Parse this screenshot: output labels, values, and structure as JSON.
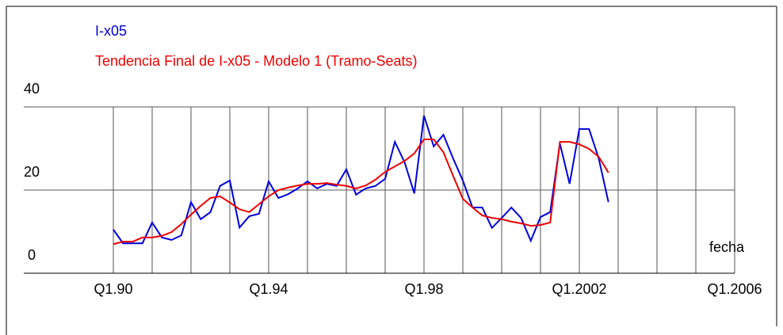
{
  "chart_data": {
    "type": "line",
    "x_label": "fecha",
    "x": [
      1990,
      1990.25,
      1990.5,
      1990.75,
      1991,
      1991.25,
      1991.5,
      1991.75,
      1992,
      1992.25,
      1992.5,
      1992.75,
      1993,
      1993.25,
      1993.5,
      1993.75,
      1994,
      1994.25,
      1994.5,
      1994.75,
      1995,
      1995.25,
      1995.5,
      1995.75,
      1996,
      1996.25,
      1996.5,
      1996.75,
      1997,
      1997.25,
      1997.5,
      1997.75,
      1998,
      1998.25,
      1998.5,
      1998.75,
      1999,
      1999.25,
      1999.5,
      1999.75,
      2000,
      2000.25,
      2000.5,
      2000.75,
      2001,
      2001.25,
      2001.5,
      2001.75,
      2002,
      2002.25,
      2002.5,
      2002.75
    ],
    "series": [
      {
        "name": "I-x05",
        "color": "#0000dd",
        "values": [
          10.5,
          7.2,
          7.2,
          7.2,
          12.2,
          8.6,
          8,
          9.1,
          17.1,
          13,
          14.7,
          21,
          22.3,
          11,
          13.7,
          14.3,
          22.1,
          18.1,
          19,
          20.4,
          22.1,
          20.4,
          21.5,
          21,
          25,
          18.9,
          20.4,
          21,
          22.7,
          31.6,
          26.7,
          19.2,
          37.9,
          30.5,
          33.3,
          27.6,
          22.3,
          15.8,
          15.8,
          10.9,
          13.3,
          15.8,
          13.3,
          7.8,
          13.5,
          14.7,
          31.2,
          21.5,
          34.7,
          34.7,
          27.6,
          17.1
        ]
      },
      {
        "name": "Tendencia Final de  I-x05 - Modelo 1 (Tramo-Seats)",
        "color": "#ee0000",
        "values": [
          7,
          7.6,
          7.6,
          8.6,
          8.6,
          9,
          9.9,
          11.8,
          14.1,
          16.2,
          18.1,
          18.5,
          17,
          15.4,
          14.7,
          16.6,
          18.5,
          20,
          20.6,
          21.1,
          21.5,
          21.5,
          21.7,
          21.3,
          21,
          20.4,
          21.1,
          22.5,
          24.4,
          25.7,
          27,
          28.8,
          32.2,
          32.2,
          29.1,
          23.4,
          17.9,
          15.8,
          13.9,
          13.3,
          13,
          12.4,
          12,
          11.4,
          11.6,
          12.2,
          31.6,
          31.6,
          31,
          29.9,
          28,
          24.2
        ]
      }
    ],
    "xlim": [
      1990,
      2006
    ],
    "xticks": [
      {
        "value": 1990,
        "label": "Q1.90"
      },
      {
        "value": 1994,
        "label": "Q1.94"
      },
      {
        "value": 1998,
        "label": "Q1.98"
      },
      {
        "value": 2002,
        "label": "Q1.2002"
      },
      {
        "value": 2006,
        "label": "Q1.2006"
      }
    ],
    "ylim": [
      0,
      40
    ],
    "yticks": [
      0,
      20,
      40
    ],
    "grid": true
  }
}
